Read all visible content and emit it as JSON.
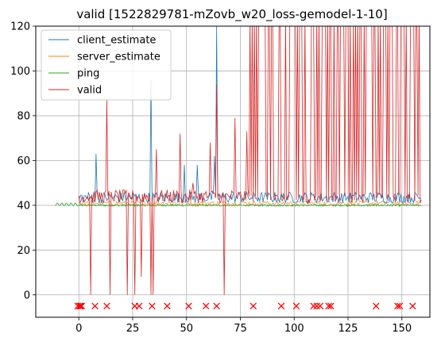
{
  "chart_data": {
    "type": "line",
    "title": "valid [1522829781-mZovb_w20_loss-gemodel-1-10]",
    "xlim": [
      -20,
      163
    ],
    "ylim": [
      -10,
      120
    ],
    "xticks": [
      0,
      25,
      50,
      75,
      100,
      125,
      150
    ],
    "yticks": [
      0,
      20,
      40,
      60,
      80,
      100,
      120
    ],
    "grid": true,
    "legend_placement": "top-left",
    "series": [
      {
        "name": "client_estimate",
        "color": "#1f77b4"
      },
      {
        "name": "server_estimate",
        "color": "#ff7f0e"
      },
      {
        "name": "ping",
        "color": "#2ca02c"
      },
      {
        "name": "valid",
        "color": "#d62728"
      }
    ],
    "client_spikes": [
      [
        8,
        63
      ],
      [
        33.5,
        96
      ],
      [
        63,
        62
      ],
      [
        64,
        120
      ],
      [
        55,
        58
      ],
      [
        49,
        58
      ]
    ],
    "ping_baseline": {
      "x_start": -11,
      "x_end": 159,
      "y": 40
    },
    "valid_dips": [
      [
        5.5,
        0
      ],
      [
        14.5,
        0
      ],
      [
        22.5,
        0
      ],
      [
        26,
        0
      ],
      [
        29,
        8
      ],
      [
        33.5,
        0
      ],
      [
        34.5,
        0
      ],
      [
        67.5,
        0
      ]
    ],
    "valid_spikes": [
      [
        13,
        87
      ],
      [
        47,
        72
      ],
      [
        61,
        68
      ],
      [
        64,
        94
      ],
      [
        72.5,
        79
      ],
      [
        78,
        73
      ],
      [
        36,
        65
      ],
      [
        53,
        50
      ]
    ],
    "loss_markers_y": -5,
    "loss_markers_x": [
      -0.5,
      0.3,
      0.8,
      1.3,
      7.5,
      13,
      26,
      28,
      34,
      41,
      51,
      59,
      64,
      81,
      94,
      101,
      109,
      110.5,
      112,
      116,
      117,
      138,
      148,
      149,
      155
    ],
    "dense_region": {
      "x_start": 79,
      "x_end": 159,
      "y_low": 40,
      "y_high": 120
    }
  }
}
